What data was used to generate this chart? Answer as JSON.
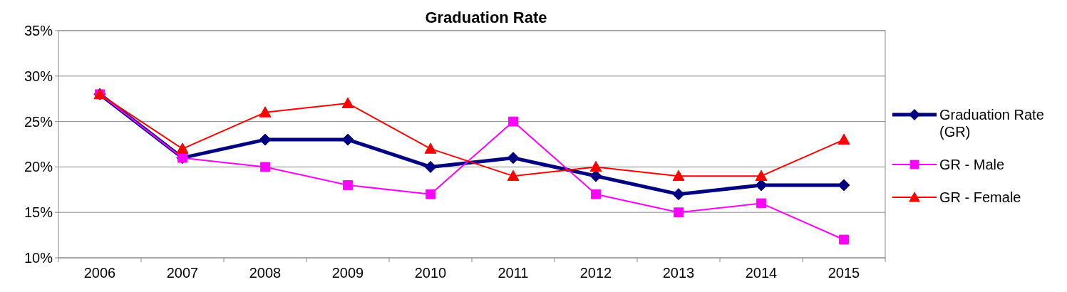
{
  "chart_data": {
    "type": "line",
    "title": "Graduation Rate",
    "categories": [
      "2006",
      "2007",
      "2008",
      "2009",
      "2010",
      "2011",
      "2012",
      "2013",
      "2014",
      "2015"
    ],
    "series": [
      {
        "name": "Graduation Rate (GR)",
        "color": "#000080",
        "marker": "diamond",
        "values": [
          28,
          21,
          23,
          23,
          20,
          21,
          19,
          17,
          18,
          18
        ]
      },
      {
        "name": "GR - Male",
        "color": "#ff00ff",
        "marker": "square",
        "values": [
          28,
          21,
          20,
          18,
          17,
          25,
          17,
          15,
          16,
          12
        ]
      },
      {
        "name": "GR - Female",
        "color": "#ff0000",
        "marker": "triangle",
        "values": [
          28,
          22,
          26,
          27,
          22,
          19,
          20,
          19,
          19,
          23
        ]
      }
    ],
    "ylim": [
      10,
      35
    ],
    "yticks": [
      {
        "value": 10,
        "label": "10%"
      },
      {
        "value": 15,
        "label": "15%"
      },
      {
        "value": 20,
        "label": "20%"
      },
      {
        "value": 25,
        "label": "25%"
      },
      {
        "value": 30,
        "label": "30%"
      },
      {
        "value": 35,
        "label": "35%"
      }
    ],
    "grid": "y",
    "legend": "right",
    "line_style": "solid"
  }
}
